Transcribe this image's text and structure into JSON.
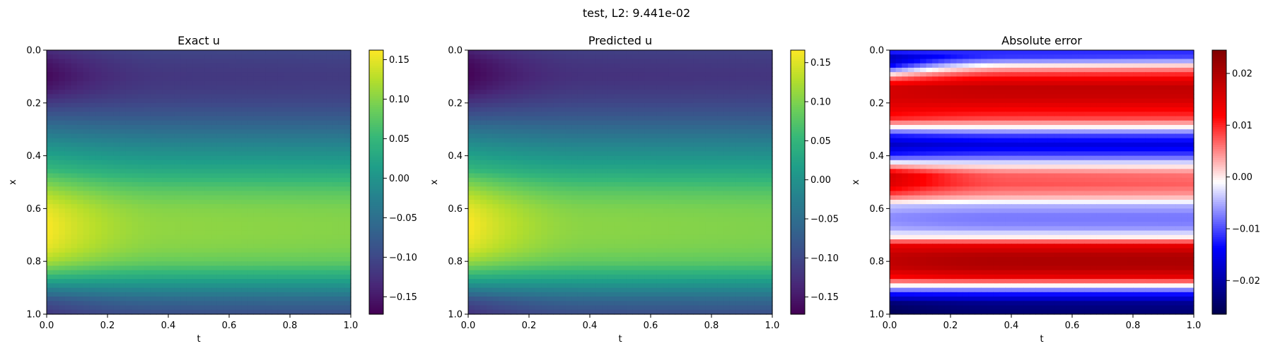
{
  "suptitle": "test, L2: 9.441e-02",
  "chart_data": [
    {
      "type": "heatmap",
      "title": "Exact u",
      "xlabel": "t",
      "ylabel": "x",
      "xlim": [
        0,
        1
      ],
      "ylim": [
        0,
        1
      ],
      "y_inverted": true,
      "xticks": [
        "0.0",
        "0.2",
        "0.4",
        "0.6",
        "0.8",
        "1.0"
      ],
      "yticks": [
        "0.0",
        "0.2",
        "0.4",
        "0.6",
        "0.8",
        "1.0"
      ],
      "colormap": "viridis",
      "clim": [
        -0.172,
        0.162
      ],
      "colorbar_ticks": [
        "−0.15",
        "−0.10",
        "−0.05",
        "0.00",
        "0.05",
        "0.10",
        "0.15"
      ],
      "colorbar_tick_values": [
        -0.15,
        -0.1,
        -0.05,
        0.0,
        0.05,
        0.1,
        0.15
      ],
      "profile_x": [
        0.0,
        0.05,
        0.1,
        0.15,
        0.2,
        0.25,
        0.3,
        0.35,
        0.4,
        0.45,
        0.5,
        0.55,
        0.6,
        0.65,
        0.7,
        0.75,
        0.8,
        0.85,
        0.9,
        0.95,
        1.0
      ],
      "profile_t0": [
        -0.13,
        -0.155,
        -0.165,
        -0.15,
        -0.115,
        -0.08,
        -0.045,
        -0.01,
        0.02,
        0.05,
        0.09,
        0.125,
        0.15,
        0.16,
        0.16,
        0.15,
        0.12,
        0.06,
        -0.02,
        -0.09,
        -0.12
      ],
      "profile_t1": [
        -0.1,
        -0.11,
        -0.115,
        -0.11,
        -0.1,
        -0.08,
        -0.055,
        -0.025,
        0.0,
        0.025,
        0.055,
        0.08,
        0.095,
        0.1,
        0.1,
        0.095,
        0.08,
        0.04,
        -0.01,
        -0.06,
        -0.09
      ]
    },
    {
      "type": "heatmap",
      "title": "Predicted u",
      "xlabel": "t",
      "ylabel": "x",
      "xlim": [
        0,
        1
      ],
      "ylim": [
        0,
        1
      ],
      "y_inverted": true,
      "xticks": [
        "0.0",
        "0.2",
        "0.4",
        "0.6",
        "0.8",
        "1.0"
      ],
      "yticks": [
        "0.0",
        "0.2",
        "0.4",
        "0.6",
        "0.8",
        "1.0"
      ],
      "colormap": "viridis",
      "clim": [
        -0.172,
        0.166
      ],
      "colorbar_ticks": [
        "−0.15",
        "−0.10",
        "−0.05",
        "0.00",
        "0.05",
        "0.10",
        "0.15"
      ],
      "colorbar_tick_values": [
        -0.15,
        -0.1,
        -0.05,
        0.0,
        0.05,
        0.1,
        0.15
      ],
      "profile_x": [
        0.0,
        0.05,
        0.1,
        0.15,
        0.2,
        0.25,
        0.3,
        0.35,
        0.4,
        0.45,
        0.5,
        0.55,
        0.6,
        0.65,
        0.7,
        0.75,
        0.8,
        0.85,
        0.9,
        0.95,
        1.0
      ],
      "profile_t0": [
        -0.14,
        -0.165,
        -0.17,
        -0.155,
        -0.12,
        -0.085,
        -0.045,
        -0.01,
        0.02,
        0.05,
        0.095,
        0.13,
        0.155,
        0.165,
        0.163,
        0.15,
        0.115,
        0.055,
        -0.02,
        -0.095,
        -0.125
      ],
      "profile_t1": [
        -0.105,
        -0.115,
        -0.12,
        -0.112,
        -0.1,
        -0.08,
        -0.055,
        -0.025,
        0.0,
        0.025,
        0.055,
        0.08,
        0.095,
        0.1,
        0.1,
        0.095,
        0.08,
        0.04,
        -0.01,
        -0.06,
        -0.09
      ]
    },
    {
      "type": "heatmap",
      "title": "Absolute error",
      "xlabel": "t",
      "ylabel": "x",
      "xlim": [
        0,
        1
      ],
      "ylim": [
        0,
        1
      ],
      "y_inverted": true,
      "xticks": [
        "0.0",
        "0.2",
        "0.4",
        "0.6",
        "0.8",
        "1.0"
      ],
      "yticks": [
        "0.0",
        "0.2",
        "0.4",
        "0.6",
        "0.8",
        "1.0"
      ],
      "colormap": "seismic",
      "clim": [
        -0.0265,
        0.0245
      ],
      "colorbar_ticks": [
        "−0.02",
        "−0.01",
        "0.00",
        "0.01",
        "0.02"
      ],
      "colorbar_tick_values": [
        -0.02,
        -0.01,
        0.0,
        0.01,
        0.02
      ],
      "profile_x": [
        0.0,
        0.03,
        0.06,
        0.1,
        0.14,
        0.18,
        0.22,
        0.26,
        0.29,
        0.32,
        0.36,
        0.4,
        0.43,
        0.47,
        0.51,
        0.55,
        0.59,
        0.63,
        0.67,
        0.71,
        0.74,
        0.78,
        0.82,
        0.86,
        0.89,
        0.92,
        0.96,
        1.0
      ],
      "profile_t0": [
        -0.01,
        -0.02,
        -0.014,
        0.004,
        0.016,
        0.016,
        0.014,
        0.01,
        0.0,
        -0.012,
        -0.018,
        -0.012,
        0.0,
        0.016,
        0.015,
        0.008,
        -0.004,
        -0.007,
        -0.006,
        0.0,
        0.014,
        0.018,
        0.018,
        0.012,
        0.0,
        -0.012,
        -0.024,
        -0.026
      ],
      "profile_t1": [
        -0.012,
        -0.01,
        0.002,
        0.012,
        0.018,
        0.017,
        0.013,
        0.008,
        0.0,
        -0.01,
        -0.016,
        -0.01,
        -0.002,
        0.006,
        0.007,
        0.004,
        -0.005,
        -0.008,
        -0.007,
        0.0,
        0.014,
        0.02,
        0.02,
        0.014,
        0.0,
        -0.012,
        -0.022,
        -0.024
      ]
    }
  ]
}
